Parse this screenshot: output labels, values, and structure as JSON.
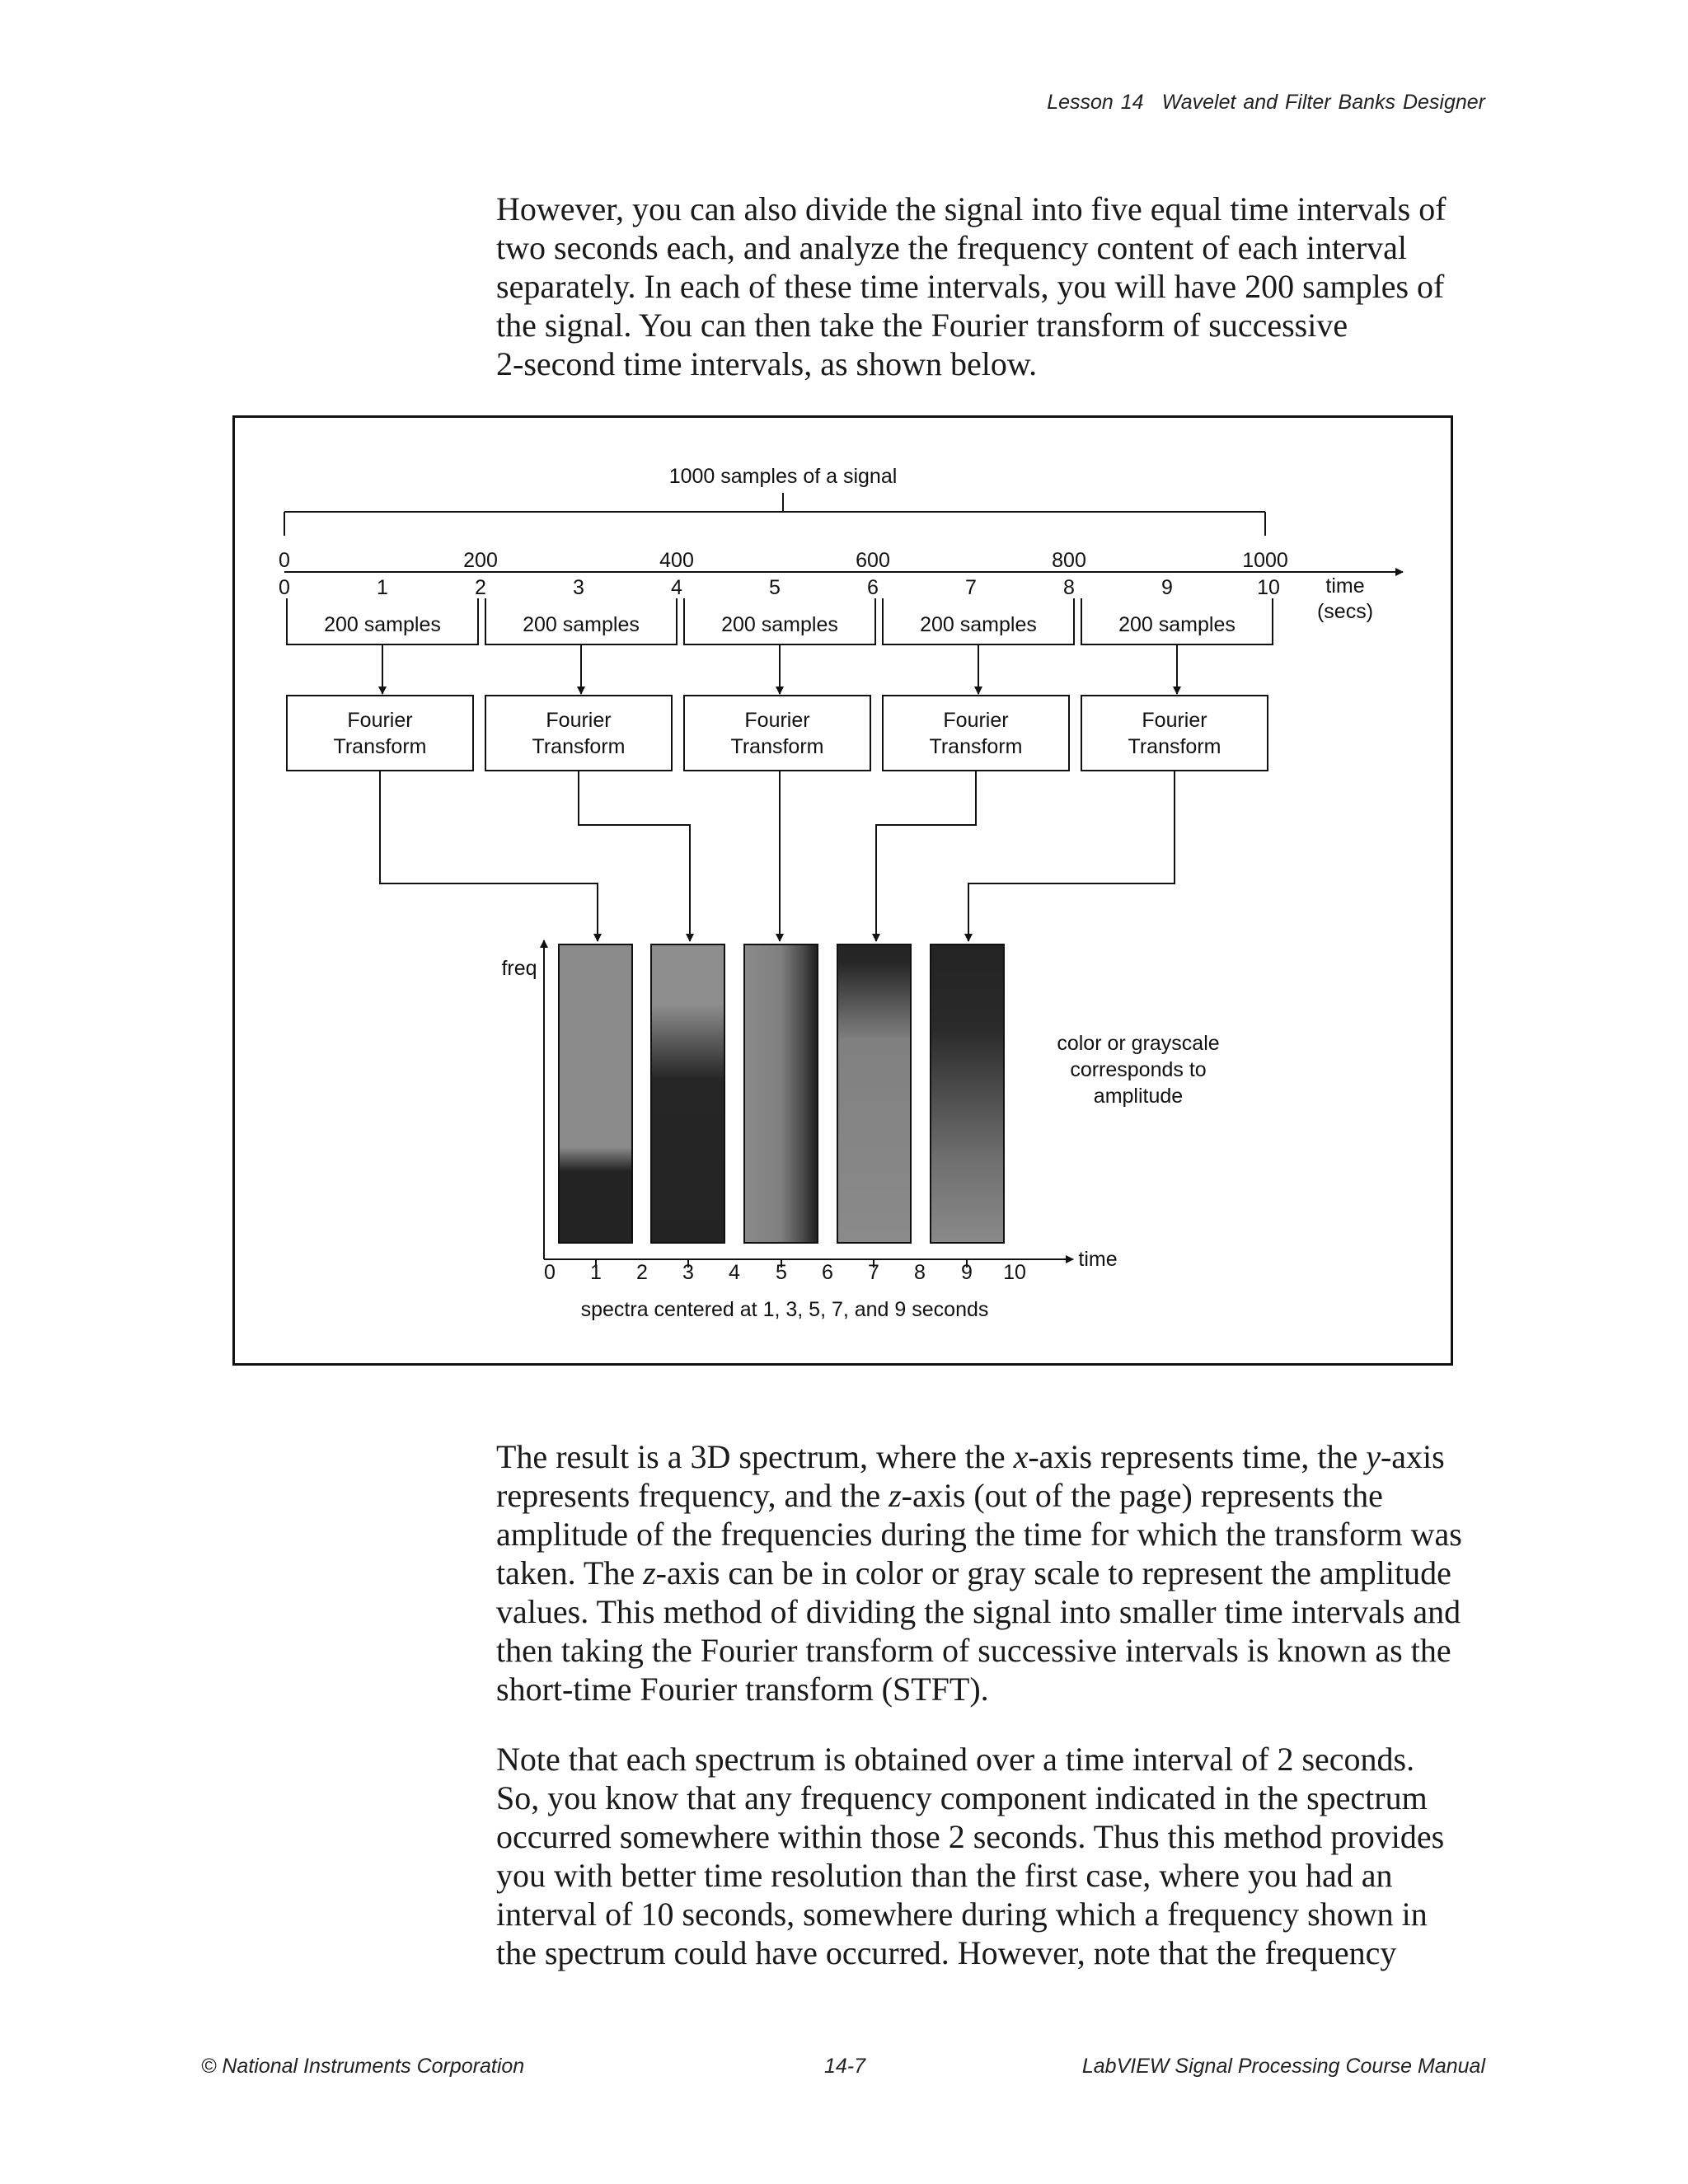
{
  "header": {
    "lesson": "Lesson 14",
    "title": "Wavelet and Filter Banks Designer"
  },
  "intro_paragraph": {
    "lines": [
      "However, you can also divide the signal into five equal time intervals of",
      "two seconds each, and analyze the frequency content of each interval",
      "separately. In each of these time intervals, you will have 200 samples of",
      "the signal. You can then take the Fourier transform of successive",
      "2-second time intervals, as shown below."
    ]
  },
  "figure": {
    "bracket_label": "1000 samples of a signal",
    "sample_ticks": [
      "0",
      "200",
      "400",
      "600",
      "800",
      "1000"
    ],
    "time_ticks": [
      "0",
      "1",
      "2",
      "3",
      "4",
      "5",
      "6",
      "7",
      "8",
      "9",
      "10"
    ],
    "time_axis_label_1": "time",
    "time_axis_label_2": "(secs)",
    "interval_label": "200 samples",
    "transform_label_1": "Fourier",
    "transform_label_2": "Transform",
    "freq_label": "freq",
    "bottom_time_label": "time",
    "bottom_ticks": [
      "0",
      "1",
      "2",
      "3",
      "4",
      "5",
      "6",
      "7",
      "8",
      "9",
      "10"
    ],
    "caption": "spectra centered at 1, 3, 5, 7, and 9 seconds",
    "note_lines": [
      "color or grayscale",
      "corresponds to",
      "amplitude"
    ]
  },
  "result_paragraph": {
    "lines": [
      [
        "The result is a 3D spectrum, where the ",
        "x",
        "-axis represents time, the ",
        "y",
        "-axis"
      ],
      [
        "represents frequency, and the ",
        "z",
        "-axis (out of the page) represents the"
      ],
      [
        "amplitude of the frequencies during the time for which the transform was"
      ],
      [
        "taken. The ",
        "z",
        "-axis can be in color or gray scale to represent the amplitude"
      ],
      [
        "values. This method of dividing the signal into smaller time intervals and"
      ],
      [
        "then taking the Fourier transform of successive intervals is known as the"
      ],
      [
        "short-time Fourier transform (STFT)."
      ]
    ]
  },
  "note_paragraph": {
    "lines": [
      "Note that each spectrum is obtained over a time interval of 2 seconds.",
      "So, you know that any frequency component indicated in the spectrum",
      "occurred somewhere within those 2 seconds. Thus this method provides",
      "you with better time resolution than the first case, where you had an",
      "interval of 10 seconds, somewhere during which a frequency shown in",
      "the spectrum could have occurred. However, note that the frequency"
    ]
  },
  "footer": {
    "left": "© National Instruments Corporation",
    "center": "14-7",
    "right": "LabVIEW Signal Processing Course Manual"
  }
}
